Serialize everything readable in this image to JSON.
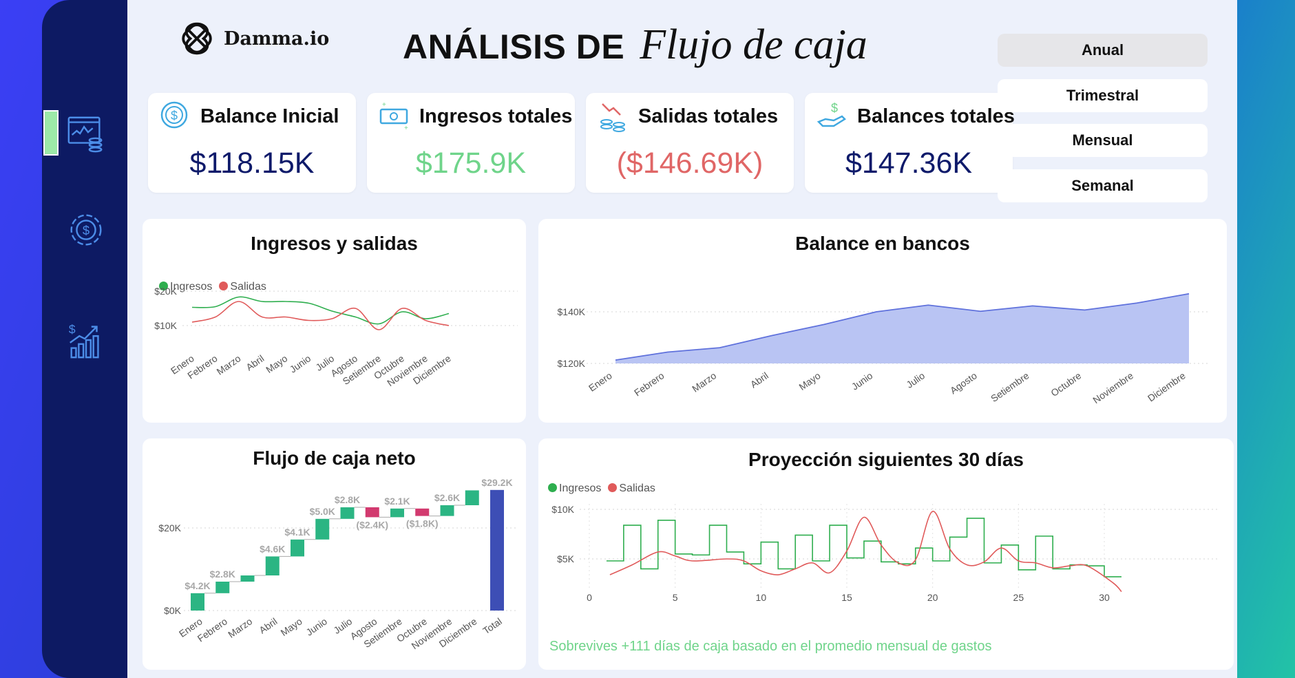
{
  "brand": {
    "name": "Damma.io"
  },
  "header": {
    "title_main": "ANÁLISIS DE",
    "title_script": "Flujo de caja"
  },
  "kpis": [
    {
      "label": "Balance Inicial",
      "value": "$118.15K",
      "color": "#0e1a6a",
      "icon": "dollar-coin-icon"
    },
    {
      "label": "Ingresos totales",
      "value": "$175.9K",
      "color": "#6fd48a",
      "icon": "cash-bill-icon"
    },
    {
      "label": "Salidas totales",
      "value": "($146.69K)",
      "color": "#e06666",
      "icon": "coins-down-icon"
    },
    {
      "label": "Balances totales",
      "value": "$147.36K",
      "color": "#0e1a6a",
      "icon": "hand-money-icon"
    }
  ],
  "periods": [
    {
      "label": "Anual",
      "active": true
    },
    {
      "label": "Trimestral",
      "active": false
    },
    {
      "label": "Mensual",
      "active": false
    },
    {
      "label": "Semanal",
      "active": false
    }
  ],
  "sidebar": {
    "items": [
      "dashboard-chart-icon",
      "money-gear-icon",
      "growth-bars-icon"
    ],
    "active": 0
  },
  "colors": {
    "ingresos": "#2eae4e",
    "salidas": "#e05a5a",
    "bank_fill": "#b9c4f3",
    "bank_line": "#5f71dc",
    "wf_up": "#2bb583",
    "wf_down": "#d23a6f",
    "wf_total": "#3d4eb5"
  },
  "chart_data": [
    {
      "id": "ingresos_salidas",
      "type": "line",
      "title": "Ingresos y salidas",
      "categories": [
        "Enero",
        "Febrero",
        "Marzo",
        "Abril",
        "Mayo",
        "Junio",
        "Julio",
        "Agosto",
        "Setiembre",
        "Octubre",
        "Noviembre",
        "Diciembre"
      ],
      "series": [
        {
          "name": "Ingresos",
          "values": [
            15.3,
            15.5,
            18.3,
            17.0,
            17.0,
            16.5,
            14.2,
            12.5,
            10.5,
            14.0,
            12.0,
            13.5
          ]
        },
        {
          "name": "Salidas",
          "values": [
            11.0,
            12.5,
            17.0,
            12.5,
            12.5,
            11.5,
            12.0,
            15.0,
            8.8,
            15.0,
            11.5,
            10.0
          ]
        }
      ],
      "y_ticks": [
        {
          "value": 20,
          "label": "$20K"
        },
        {
          "value": 10,
          "label": "$10K"
        }
      ],
      "ylim": [
        5,
        22
      ],
      "legend": "top-left",
      "grid": true
    },
    {
      "id": "balance_bancos",
      "type": "area",
      "title": "Balance en bancos",
      "categories": [
        "Enero",
        "Febrero",
        "Marzo",
        "Abril",
        "Mayo",
        "Junio",
        "Julio",
        "Agosto",
        "Setiembre",
        "Octubre",
        "Noviembre",
        "Diciembre"
      ],
      "values": [
        121.3,
        124.4,
        126.1,
        130.8,
        135.1,
        140.0,
        142.6,
        140.2,
        142.3,
        140.7,
        143.4,
        147.0
      ],
      "y_ticks": [
        {
          "value": 140,
          "label": "$140K"
        },
        {
          "value": 120,
          "label": "$120K"
        }
      ],
      "ylim": [
        120,
        149
      ],
      "grid": true
    },
    {
      "id": "flujo_neto",
      "type": "waterfall",
      "title": "Flujo de caja neto",
      "categories": [
        "Enero",
        "Febrero",
        "Marzo",
        "Abril",
        "Mayo",
        "Junio",
        "Julio",
        "Agosto",
        "Setiembre",
        "Octubre",
        "Noviembre",
        "Diciembre",
        "Total"
      ],
      "values": [
        4.2,
        2.8,
        1.5,
        4.6,
        4.1,
        5.0,
        2.8,
        -2.4,
        2.1,
        -1.8,
        2.6,
        3.6,
        29.2
      ],
      "labels": [
        "$4.2K",
        "$2.8K",
        "",
        "$4.6K",
        "$4.1K",
        "$5.0K",
        "$2.8K",
        "($2.4K)",
        "$2.1K",
        "($1.8K)",
        "$2.6K",
        "",
        "$29.2K"
      ],
      "y_ticks": [
        {
          "value": 20,
          "label": "$20K"
        },
        {
          "value": 0,
          "label": "$0K"
        }
      ],
      "ylim": [
        0,
        30.5
      ],
      "grid": true
    },
    {
      "id": "proyeccion",
      "type": "line",
      "title": "Proyección siguientes 30 días",
      "x_ticks": [
        0,
        5,
        10,
        15,
        20,
        25,
        30
      ],
      "y_ticks": [
        {
          "value": 10,
          "label": "$10K"
        },
        {
          "value": 5,
          "label": "$5K"
        }
      ],
      "xlim": [
        0,
        35
      ],
      "ylim": [
        0.8,
        10.7
      ],
      "series": [
        {
          "name": "Ingresos",
          "shape": "step",
          "values": [
            4.8,
            8.4,
            4.0,
            8.9,
            5.5,
            5.4,
            8.4,
            5.7,
            4.5,
            6.7,
            4.0,
            7.4,
            4.8,
            8.4,
            5.1,
            6.8,
            4.7,
            4.5,
            6.1,
            4.8,
            7.2,
            9.1,
            4.6,
            6.4,
            3.9,
            7.3,
            4.0,
            4.4,
            4.3,
            3.2
          ],
          "x_start": 1
        },
        {
          "name": "Salidas",
          "shape": "smooth",
          "points": [
            [
              1.2,
              3.4
            ],
            [
              2.5,
              4.4
            ],
            [
              4.0,
              5.7
            ],
            [
              5.0,
              5.3
            ],
            [
              6.0,
              4.8
            ],
            [
              8.0,
              5.0
            ],
            [
              9.0,
              4.8
            ],
            [
              10.0,
              3.8
            ],
            [
              11.0,
              3.4
            ],
            [
              12.0,
              4.0
            ],
            [
              13.0,
              4.6
            ],
            [
              14.0,
              3.6
            ],
            [
              15.0,
              5.8
            ],
            [
              16.0,
              9.2
            ],
            [
              17.0,
              6.4
            ],
            [
              18.0,
              4.6
            ],
            [
              19.0,
              4.9
            ],
            [
              20.0,
              9.8
            ],
            [
              21.0,
              6.0
            ],
            [
              22.0,
              4.4
            ],
            [
              23.0,
              4.7
            ],
            [
              24.0,
              6.1
            ],
            [
              25.0,
              4.8
            ],
            [
              26.0,
              4.6
            ],
            [
              27.0,
              4.1
            ],
            [
              28.0,
              4.3
            ],
            [
              29.0,
              4.3
            ],
            [
              30.5,
              2.6
            ],
            [
              31.0,
              1.7
            ]
          ]
        }
      ],
      "legend": "top-left",
      "grid": true,
      "footnote": "Sobrevives +111 días de caja basado en el promedio mensual de gastos"
    }
  ]
}
